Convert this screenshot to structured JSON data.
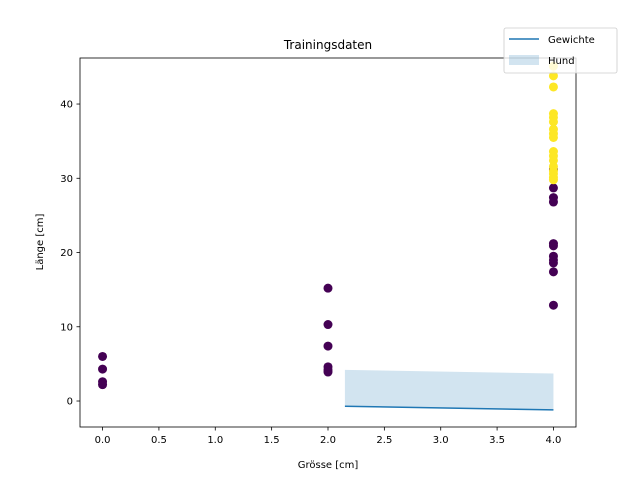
{
  "chart_data": {
    "type": "scatter",
    "title": "Trainingsdaten",
    "xlabel": "Grösse [cm]",
    "ylabel": "Länge [cm]",
    "xlim": [
      -0.2,
      4.2
    ],
    "ylim": [
      -3.5,
      46.2
    ],
    "grid": false,
    "xticks": [
      0.0,
      0.5,
      1.0,
      1.5,
      2.0,
      2.5,
      3.0,
      3.5,
      4.0
    ],
    "xtick_labels": [
      "0.0",
      "0.5",
      "1.0",
      "1.5",
      "2.0",
      "2.5",
      "3.0",
      "3.5",
      "4.0"
    ],
    "yticks": [
      0,
      10,
      20,
      30,
      40
    ],
    "ytick_labels": [
      "0",
      "10",
      "20",
      "30",
      "40"
    ],
    "legend": {
      "placement": "top-right",
      "entries": [
        {
          "label": "Gewichte",
          "kind": "line",
          "color": "#1f77b4"
        },
        {
          "label": "Hund",
          "kind": "fill",
          "color": "#1f77b4"
        }
      ]
    },
    "series": [
      {
        "kind": "scatter",
        "color": "#440154",
        "points": [
          [
            0,
            6.0
          ],
          [
            0,
            4.3
          ],
          [
            0,
            2.6
          ],
          [
            0,
            2.2
          ],
          [
            2,
            15.2
          ],
          [
            2,
            10.3
          ],
          [
            2,
            7.4
          ],
          [
            2,
            4.6
          ],
          [
            2,
            4.2
          ],
          [
            2,
            3.9
          ],
          [
            4,
            31.2
          ],
          [
            4,
            28.7
          ],
          [
            4,
            27.4
          ],
          [
            4,
            26.8
          ],
          [
            4,
            21.2
          ],
          [
            4,
            20.9
          ],
          [
            4,
            19.5
          ],
          [
            4,
            19.0
          ],
          [
            4,
            18.6
          ],
          [
            4,
            17.4
          ],
          [
            4,
            12.9
          ]
        ]
      },
      {
        "kind": "scatter",
        "color": "#fde725",
        "points": [
          [
            4,
            45.1
          ],
          [
            4,
            43.8
          ],
          [
            4,
            42.3
          ],
          [
            4,
            38.7
          ],
          [
            4,
            38.2
          ],
          [
            4,
            37.6
          ],
          [
            4,
            36.6
          ],
          [
            4,
            36.0
          ],
          [
            4,
            35.5
          ],
          [
            4,
            33.6
          ],
          [
            4,
            33.0
          ],
          [
            4,
            32.4
          ],
          [
            4,
            31.6
          ],
          [
            4,
            31.0
          ],
          [
            4,
            30.6
          ],
          [
            4,
            30.1
          ],
          [
            4,
            29.8
          ]
        ]
      },
      {
        "name": "Gewichte",
        "kind": "line",
        "color": "#1f77b4",
        "x": [
          2.15,
          4.0
        ],
        "y": [
          -0.7,
          -1.2
        ]
      },
      {
        "name": "Hund",
        "kind": "fill_between",
        "color": "#1f77b4",
        "x": [
          2.15,
          4.0
        ],
        "y_upper": [
          4.2,
          3.7
        ],
        "y_lower": [
          -0.7,
          -1.2
        ]
      }
    ]
  }
}
